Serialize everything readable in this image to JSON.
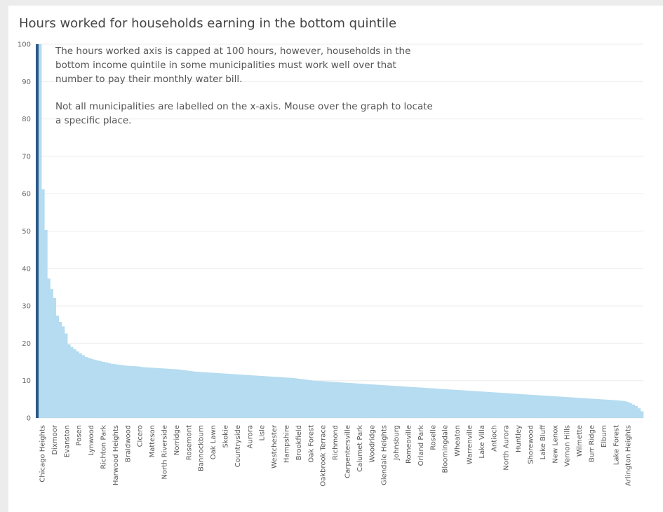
{
  "chart_data": {
    "type": "bar",
    "title": "Hours worked for households earning in the bottom quintile",
    "xlabel": "",
    "ylabel": "",
    "ylim": [
      0,
      100
    ],
    "yticks": [
      0,
      10,
      20,
      30,
      40,
      50,
      60,
      70,
      80,
      90,
      100
    ],
    "grid": true,
    "annotations": [
      "The hours worked axis is capped at 100 hours, however, households in the bottom income quintile in some municipalities must work well over that number to pay their monthly water bill.",
      "Not all municipalities are labelled on the x-axis. Mouse over the graph to locate a specific place."
    ],
    "highlight_color": "#2c5985",
    "bar_color": "#b5dcf0",
    "labeled_categories": [
      "Chicago Heights",
      "Dixmoor",
      "Evanston",
      "Posen",
      "Lynwood",
      "Richton Park",
      "Harwood Heights",
      "Braidwood",
      "Cicero",
      "Matteson",
      "North Riverside",
      "Norridge",
      "Rosemont",
      "Bannockburn",
      "Oak Lawn",
      "Skokie",
      "Countryside",
      "Aurora",
      "Lisle",
      "Westchester",
      "Hampshire",
      "Brookfield",
      "Oak Forest",
      "Oakbrook Terrace",
      "Richmond",
      "Carpentersville",
      "Calumet Park",
      "Woodridge",
      "Glendale Heights",
      "Johnsburg",
      "Romeoville",
      "Orland Park",
      "Roselle",
      "Bloomingdale",
      "Wheaton",
      "Warrenville",
      "Lake Villa",
      "Antioch",
      "North Aurora",
      "Huntley",
      "Shorewood",
      "Lake Bluff",
      "New Lenox",
      "Vernon Hills",
      "Wilmette",
      "Burr Ridge",
      "Elburn",
      "Lake Forest",
      "Arlington Heights"
    ],
    "values": [
      100,
      100,
      61.2,
      50.3,
      37.3,
      34.5,
      32.1,
      27.4,
      25.7,
      24.5,
      22.6,
      19.7,
      19.0,
      18.4,
      17.8,
      17.3,
      16.8,
      16.3,
      16.1,
      15.8,
      15.6,
      15.4,
      15.2,
      15.0,
      14.9,
      14.7,
      14.5,
      14.4,
      14.3,
      14.2,
      14.1,
      14.0,
      13.95,
      13.9,
      13.85,
      13.8,
      13.7,
      13.6,
      13.55,
      13.5,
      13.45,
      13.4,
      13.35,
      13.3,
      13.25,
      13.2,
      13.15,
      13.1,
      13.05,
      13.0,
      12.9,
      12.8,
      12.7,
      12.6,
      12.5,
      12.4,
      12.35,
      12.3,
      12.25,
      12.2,
      12.15,
      12.1,
      12.05,
      12.0,
      11.95,
      11.9,
      11.85,
      11.8,
      11.75,
      11.7,
      11.65,
      11.6,
      11.55,
      11.5,
      11.45,
      11.4,
      11.35,
      11.3,
      11.25,
      11.2,
      11.15,
      11.1,
      11.05,
      11.0,
      10.95,
      10.9,
      10.85,
      10.8,
      10.75,
      10.7,
      10.6,
      10.5,
      10.4,
      10.3,
      10.2,
      10.1,
      10.0,
      9.95,
      9.9,
      9.85,
      9.8,
      9.75,
      9.7,
      9.65,
      9.6,
      9.55,
      9.5,
      9.45,
      9.4,
      9.35,
      9.3,
      9.25,
      9.2,
      9.15,
      9.1,
      9.05,
      9.0,
      8.95,
      8.9,
      8.85,
      8.8,
      8.75,
      8.7,
      8.65,
      8.6,
      8.55,
      8.5,
      8.45,
      8.4,
      8.35,
      8.3,
      8.25,
      8.2,
      8.15,
      8.1,
      8.05,
      8.0,
      7.95,
      7.9,
      7.85,
      7.8,
      7.75,
      7.7,
      7.65,
      7.6,
      7.55,
      7.5,
      7.45,
      7.4,
      7.35,
      7.3,
      7.25,
      7.2,
      7.15,
      7.1,
      7.05,
      7.0,
      6.95,
      6.9,
      6.85,
      6.8,
      6.75,
      6.7,
      6.65,
      6.6,
      6.55,
      6.5,
      6.45,
      6.4,
      6.35,
      6.3,
      6.25,
      6.2,
      6.15,
      6.1,
      6.05,
      6.0,
      5.95,
      5.9,
      5.85,
      5.8,
      5.75,
      5.7,
      5.65,
      5.6,
      5.55,
      5.5,
      5.45,
      5.4,
      5.35,
      5.3,
      5.25,
      5.2,
      5.15,
      5.1,
      5.05,
      5.0,
      4.95,
      4.9,
      4.85,
      4.8,
      4.75,
      4.7,
      4.6,
      4.5,
      4.3,
      4.0,
      3.6,
      3.2,
      2.6,
      1.8
    ]
  }
}
